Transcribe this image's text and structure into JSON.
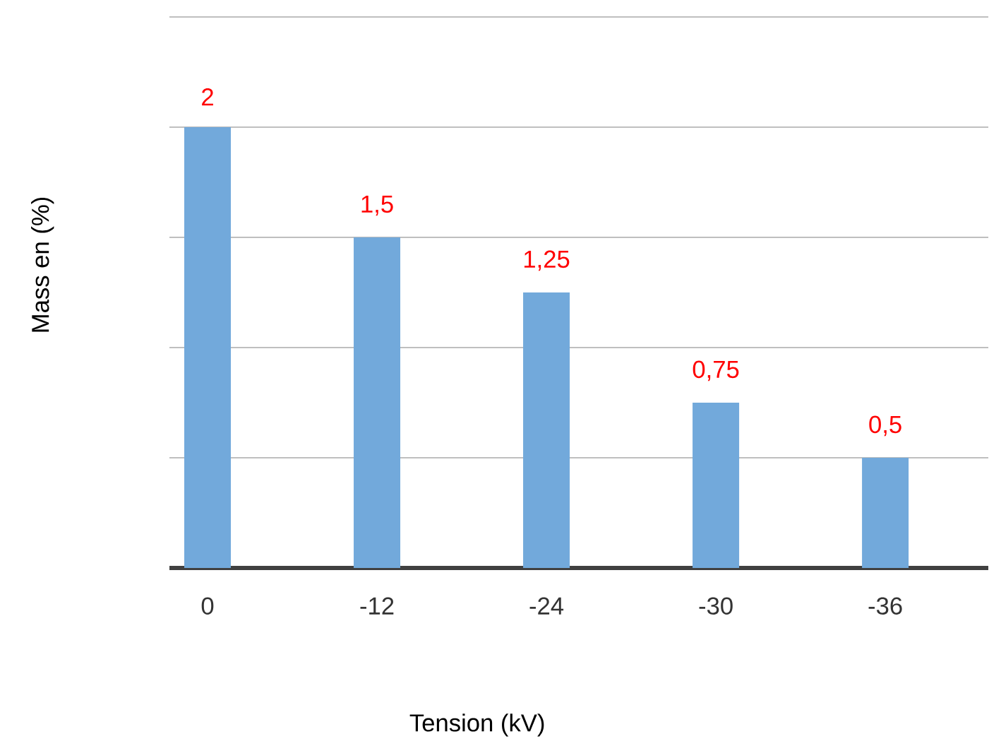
{
  "chart_data": {
    "type": "bar",
    "xlabel": "Tension  (kV)",
    "ylabel": "Mass en  (%)",
    "categories": [
      "0",
      "-12",
      "-24",
      "-30",
      "-36"
    ],
    "values": [
      2,
      1.5,
      1.25,
      0.75,
      0.5
    ],
    "color": "#72a9db",
    "ylim": [
      0,
      2.5
    ],
    "yticks": [
      {
        "value": 0,
        "label": null
      },
      {
        "value": 0.5,
        "label": null
      },
      {
        "value": 1,
        "label": null
      },
      {
        "value": 1.5,
        "label": null
      },
      {
        "value": 2,
        "label": null
      },
      {
        "value": 2.5,
        "label": null
      }
    ],
    "value_labels": [
      "2",
      "1,5",
      "1,25",
      "0,75",
      "0,5"
    ],
    "grid": "y",
    "tick_labels": "x"
  }
}
